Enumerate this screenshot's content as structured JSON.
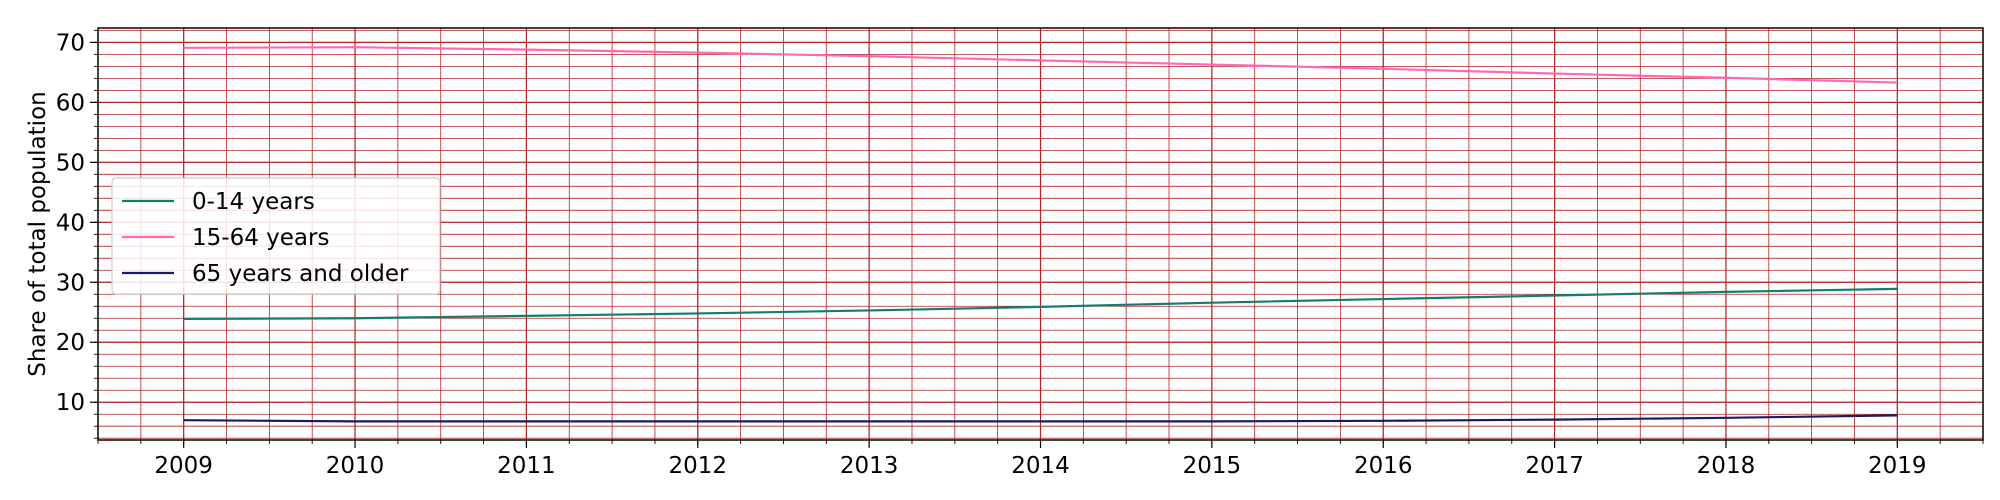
{
  "chart_data": {
    "type": "line",
    "title": "",
    "xlabel": "",
    "ylabel": "Share of total population",
    "x": [
      2009,
      2010,
      2011,
      2012,
      2013,
      2014,
      2015,
      2016,
      2017,
      2018,
      2019
    ],
    "xlim": [
      2008.5,
      2019.5
    ],
    "ylim": [
      3.7,
      72.4
    ],
    "xticks": [
      "2009",
      "2010",
      "2011",
      "2012",
      "2013",
      "2014",
      "2015",
      "2016",
      "2017",
      "2018",
      "2019"
    ],
    "yticks": [
      "10",
      "20",
      "30",
      "40",
      "50",
      "60",
      "70"
    ],
    "grid": "major and minor",
    "grid_color": "#b22222",
    "legend_position": "center-left",
    "series": [
      {
        "name": "0-14 years",
        "color": "#137e6d",
        "values": [
          23.9,
          24.0,
          24.4,
          24.8,
          25.3,
          25.9,
          26.6,
          27.2,
          27.8,
          28.4,
          28.9
        ]
      },
      {
        "name": "15-64 years",
        "color": "#ff69af",
        "values": [
          69.1,
          69.2,
          68.8,
          68.3,
          67.7,
          67.0,
          66.3,
          65.6,
          64.8,
          64.1,
          63.3
        ]
      },
      {
        "name": "65 years and older",
        "color": "#1c1a5e",
        "values": [
          7.0,
          6.8,
          6.8,
          6.8,
          6.8,
          6.8,
          6.8,
          6.9,
          7.1,
          7.4,
          7.8
        ]
      }
    ]
  }
}
